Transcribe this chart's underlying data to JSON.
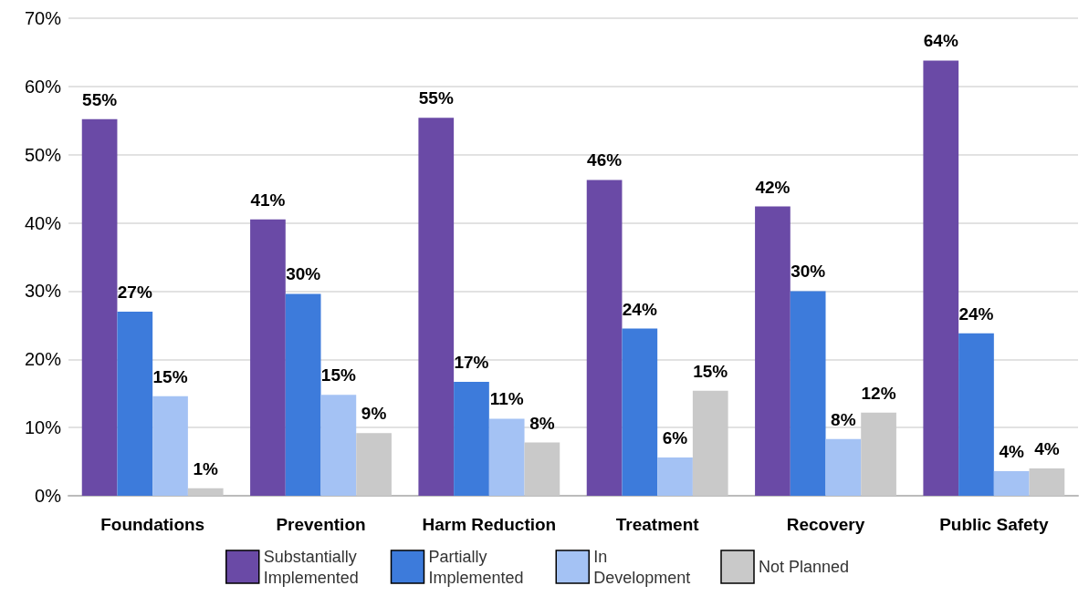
{
  "chart_data": {
    "type": "bar",
    "categories": [
      "Foundations",
      "Prevention",
      "Harm Reduction",
      "Treatment",
      "Recovery",
      "Public Safety"
    ],
    "series": [
      {
        "name": "Substantially Implemented",
        "color": "#6a4aa6",
        "values": [
          55.2,
          40.5,
          55.4,
          46.3,
          42.4,
          63.8
        ],
        "value_labels": [
          "55%",
          "41%",
          "55%",
          "46%",
          "42%",
          "64%"
        ]
      },
      {
        "name": "Partially Implemented",
        "color": "#3d7bdb",
        "values": [
          27,
          29.6,
          16.7,
          24.5,
          30,
          23.8
        ],
        "value_labels": [
          "27%",
          "30%",
          "17%",
          "24%",
          "30%",
          "24%"
        ]
      },
      {
        "name": "In Development",
        "color": "#a4c2f4",
        "values": [
          14.6,
          14.8,
          11.3,
          5.6,
          8.3,
          3.6
        ],
        "value_labels": [
          "15%",
          "15%",
          "11%",
          "6%",
          "8%",
          "4%"
        ]
      },
      {
        "name": "Not Planned",
        "color": "#c9c9c9",
        "values": [
          1.1,
          9.2,
          7.8,
          15.4,
          12.2,
          4
        ],
        "value_labels": [
          "1%",
          "9%",
          "8%",
          "15%",
          "12%",
          "4%"
        ]
      }
    ],
    "ylim": [
      0,
      70
    ],
    "yticks": [
      {
        "value": 0,
        "label": "0%"
      },
      {
        "value": 10,
        "label": "10%"
      },
      {
        "value": 20,
        "label": "20%"
      },
      {
        "value": 30,
        "label": "30%"
      },
      {
        "value": 40,
        "label": "40%"
      },
      {
        "value": 50,
        "label": "50%"
      },
      {
        "value": 60,
        "label": "60%"
      },
      {
        "value": 70,
        "label": "70%"
      }
    ],
    "grid": "y",
    "legend": "bottom"
  }
}
